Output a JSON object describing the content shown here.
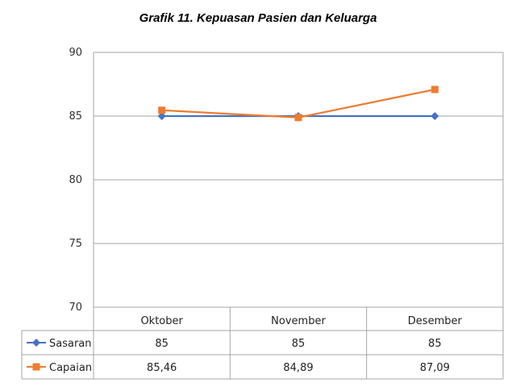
{
  "chart_data": {
    "type": "line",
    "title": "Grafik 11. Kepuasan Pasien dan Keluarga",
    "categories": [
      "Oktober",
      "November",
      "Desember"
    ],
    "ylim": [
      70,
      90
    ],
    "yticks": [
      70,
      75,
      80,
      85,
      90
    ],
    "grid": true,
    "legend": "data-table",
    "series": [
      {
        "name": "Sasaran",
        "values": [
          85,
          85,
          85
        ],
        "labels": [
          "85",
          "85",
          "85"
        ],
        "color": "#4472C4",
        "marker": "diamond"
      },
      {
        "name": "Capaian",
        "values": [
          85.46,
          84.89,
          87.09
        ],
        "labels": [
          "85,46",
          "84,89",
          "87,09"
        ],
        "color": "#ED7D31",
        "marker": "square"
      }
    ]
  }
}
